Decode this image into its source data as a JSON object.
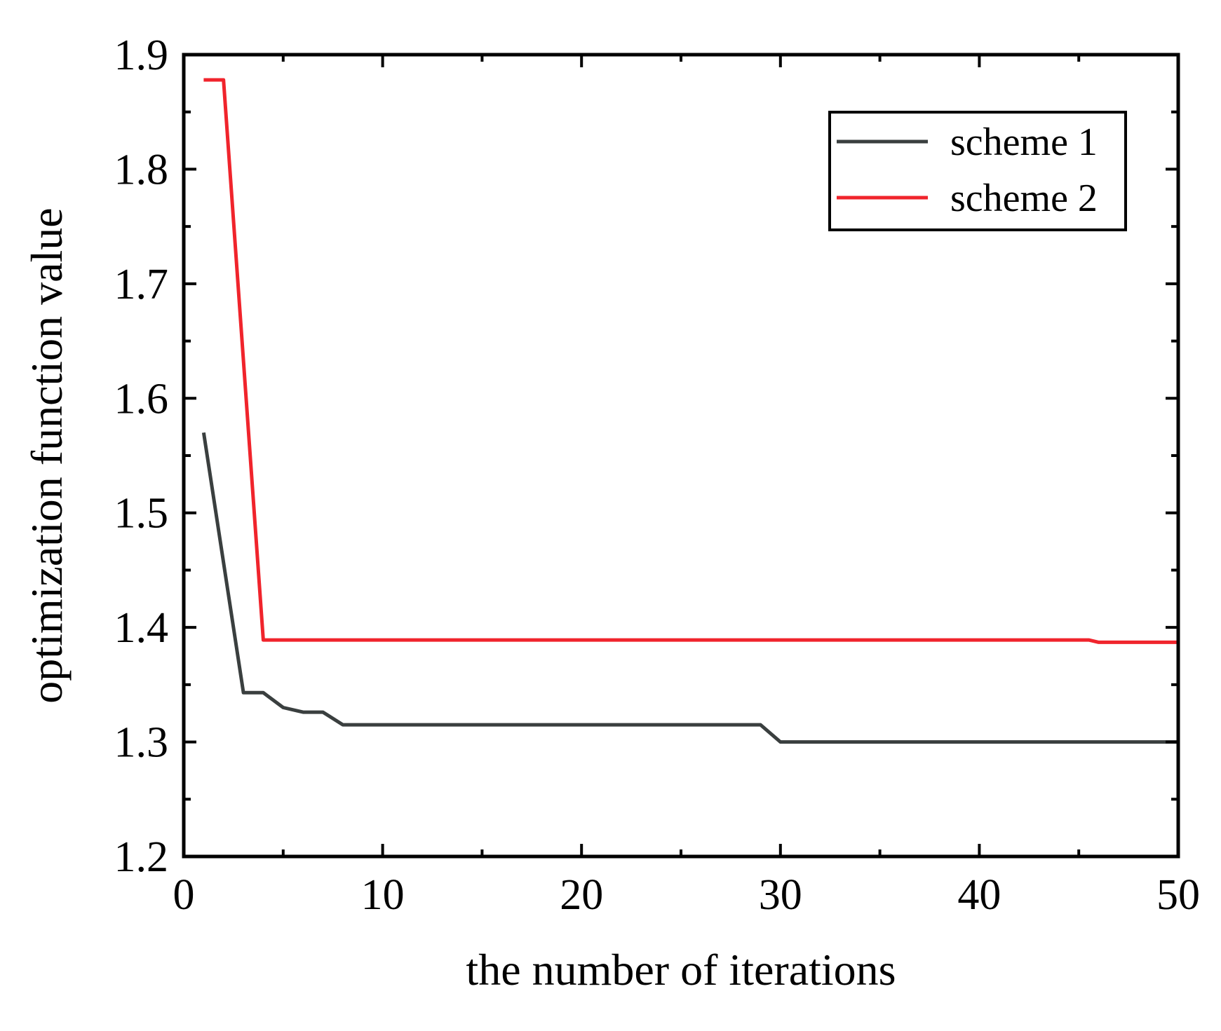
{
  "chart_data": {
    "type": "line",
    "xlabel": "the number of iterations",
    "ylabel": "optimization function value",
    "xlim": [
      0,
      50
    ],
    "ylim": [
      1.2,
      1.9
    ],
    "x_ticks": [
      0,
      10,
      20,
      30,
      40,
      50
    ],
    "x_tick_labels": [
      "0",
      "10",
      "20",
      "30",
      "40",
      "50"
    ],
    "y_ticks": [
      1.2,
      1.3,
      1.4,
      1.5,
      1.6,
      1.7,
      1.8,
      1.9
    ],
    "y_tick_labels": [
      "1.2",
      "1.3",
      "1.4",
      "1.5",
      "1.6",
      "1.7",
      "1.8",
      "1.9"
    ],
    "grid": false,
    "legend_position": "top-right",
    "series": [
      {
        "name": "scheme 1",
        "color": "#3a3f3f",
        "points": [
          [
            1,
            1.57
          ],
          [
            3,
            1.343
          ],
          [
            4,
            1.343
          ],
          [
            5,
            1.33
          ],
          [
            6,
            1.326
          ],
          [
            7,
            1.326
          ],
          [
            8,
            1.315
          ],
          [
            29,
            1.315
          ],
          [
            30,
            1.3
          ],
          [
            50,
            1.3
          ]
        ]
      },
      {
        "name": "scheme 2",
        "color": "#f0242c",
        "points": [
          [
            1,
            1.878
          ],
          [
            2,
            1.878
          ],
          [
            4,
            1.389
          ],
          [
            45.5,
            1.389
          ],
          [
            46,
            1.387
          ],
          [
            50,
            1.387
          ]
        ]
      }
    ]
  }
}
